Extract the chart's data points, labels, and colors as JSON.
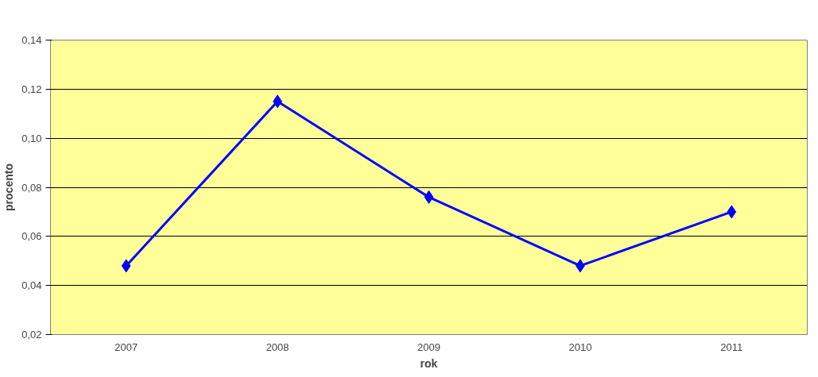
{
  "chart_data": {
    "type": "line",
    "xlabel": "rok",
    "ylabel": "procento",
    "categories": [
      "2007",
      "2008",
      "2009",
      "2010",
      "2011"
    ],
    "series": [
      {
        "color": "#0000ff",
        "values": [
          0.048,
          0.115,
          0.076,
          0.048,
          0.07
        ]
      }
    ],
    "ylim": [
      0.02,
      0.14
    ],
    "yticks": [
      {
        "value": 0.02,
        "label": "0,02"
      },
      {
        "value": 0.04,
        "label": "0,04"
      },
      {
        "value": 0.06,
        "label": "0,06"
      },
      {
        "value": 0.08,
        "label": "0,08"
      },
      {
        "value": 0.1,
        "label": "0,10"
      },
      {
        "value": 0.12,
        "label": "0,12"
      },
      {
        "value": 0.14,
        "label": "0,14"
      }
    ],
    "grid": "y",
    "marker": "diamond",
    "line_style": "solid"
  }
}
